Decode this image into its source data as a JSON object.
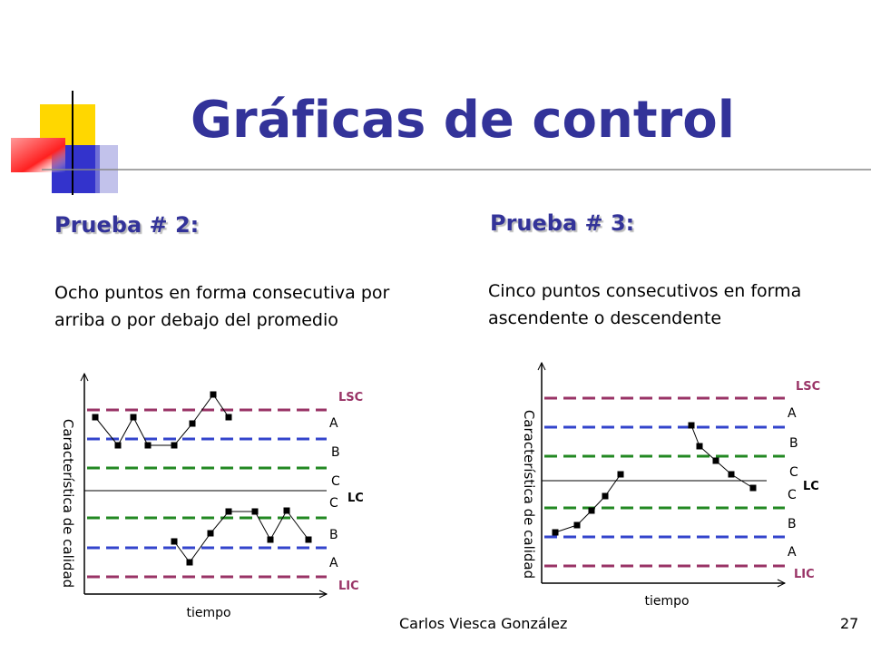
{
  "title": "Gráficas de control",
  "panels": [
    {
      "heading": "Prueba # 2:",
      "description": "Ocho puntos en forma consecutiva por arriba o por debajo del promedio",
      "diagram": {
        "y_label": "Característica de calidad",
        "x_label": "tiempo",
        "limits": {
          "upper": "LSC",
          "center": "LC",
          "lower": "LIC"
        },
        "zones": [
          "A",
          "B",
          "C",
          "C",
          "B",
          "A"
        ]
      }
    },
    {
      "heading": "Prueba # 3:",
      "description": "Cinco puntos consecutivos en forma ascendente o descendente",
      "diagram": {
        "y_label": "Característica de calidad",
        "x_label": "tiempo",
        "limits": {
          "upper": "LSC",
          "center": "LC",
          "lower": "LIC"
        },
        "zones": [
          "A",
          "B",
          "C",
          "C",
          "B",
          "A"
        ]
      }
    }
  ],
  "footer": {
    "author": "Carlos Viesca González",
    "page": 27
  }
}
